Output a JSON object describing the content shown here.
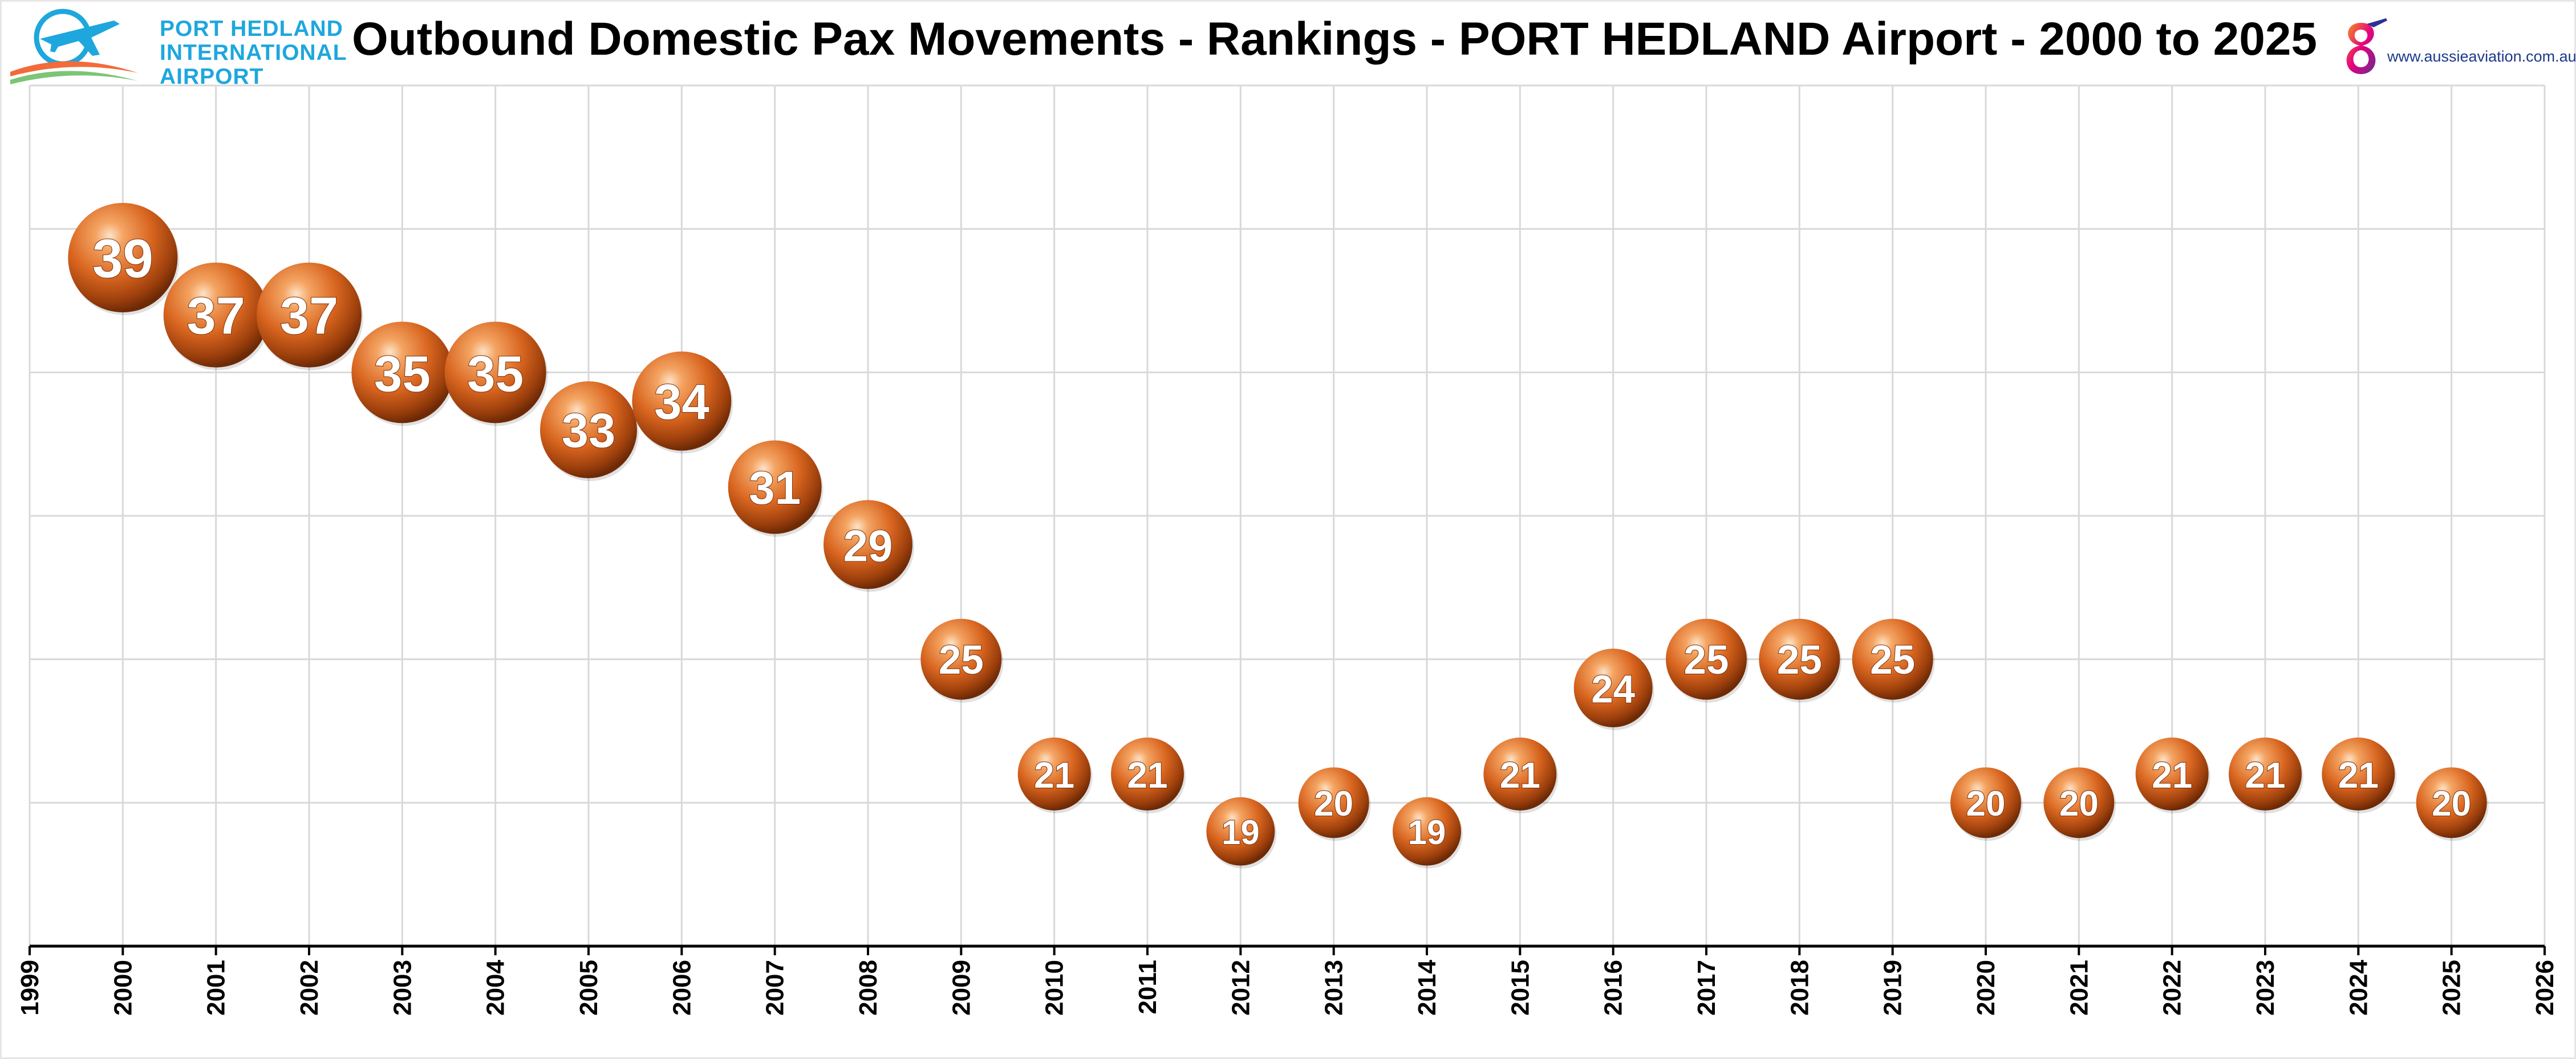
{
  "header": {
    "title": "Outbound Domestic Pax Movements - Rankings - PORT HEDLAND Airport - 2000 to 2025",
    "left_logo": {
      "line1": "PORT HEDLAND",
      "line2": "INTERNATIONAL",
      "line3": "AIRPORT",
      "icon": "airplane-icon",
      "color": "#1ea7dd",
      "accent": "#f26b3a"
    },
    "right_logo": {
      "text": "www.aussieaviation.com.au",
      "icon": "aussieaviation-logo-icon"
    }
  },
  "chart_data": {
    "type": "scatter",
    "title": "Outbound Domestic Pax Movements - Rankings - PORT HEDLAND Airport - 2000 to 2025",
    "xlabel": "",
    "ylabel": "",
    "xlim": [
      1999,
      2026
    ],
    "x_ticks": [
      1999,
      2000,
      2001,
      2002,
      2003,
      2004,
      2005,
      2006,
      2007,
      2008,
      2009,
      2010,
      2011,
      2012,
      2013,
      2014,
      2015,
      2016,
      2017,
      2018,
      2019,
      2020,
      2021,
      2022,
      2023,
      2024,
      2025,
      2026
    ],
    "ylim": [
      15,
      45
    ],
    "y_axis_reversed": true,
    "y_gridlines": [
      15,
      20,
      25,
      30,
      35,
      40,
      45
    ],
    "grid": true,
    "legend": "none",
    "marker": "sphere",
    "marker_color": "#e0702a",
    "x": [
      2000,
      2001,
      2002,
      2003,
      2004,
      2005,
      2006,
      2007,
      2008,
      2009,
      2010,
      2011,
      2012,
      2013,
      2014,
      2015,
      2016,
      2017,
      2018,
      2019,
      2020,
      2021,
      2022,
      2023,
      2024,
      2025
    ],
    "values": [
      39,
      37,
      37,
      35,
      35,
      33,
      34,
      31,
      29,
      25,
      21,
      21,
      19,
      20,
      19,
      21,
      24,
      25,
      25,
      25,
      20,
      20,
      21,
      21,
      21,
      20
    ]
  }
}
